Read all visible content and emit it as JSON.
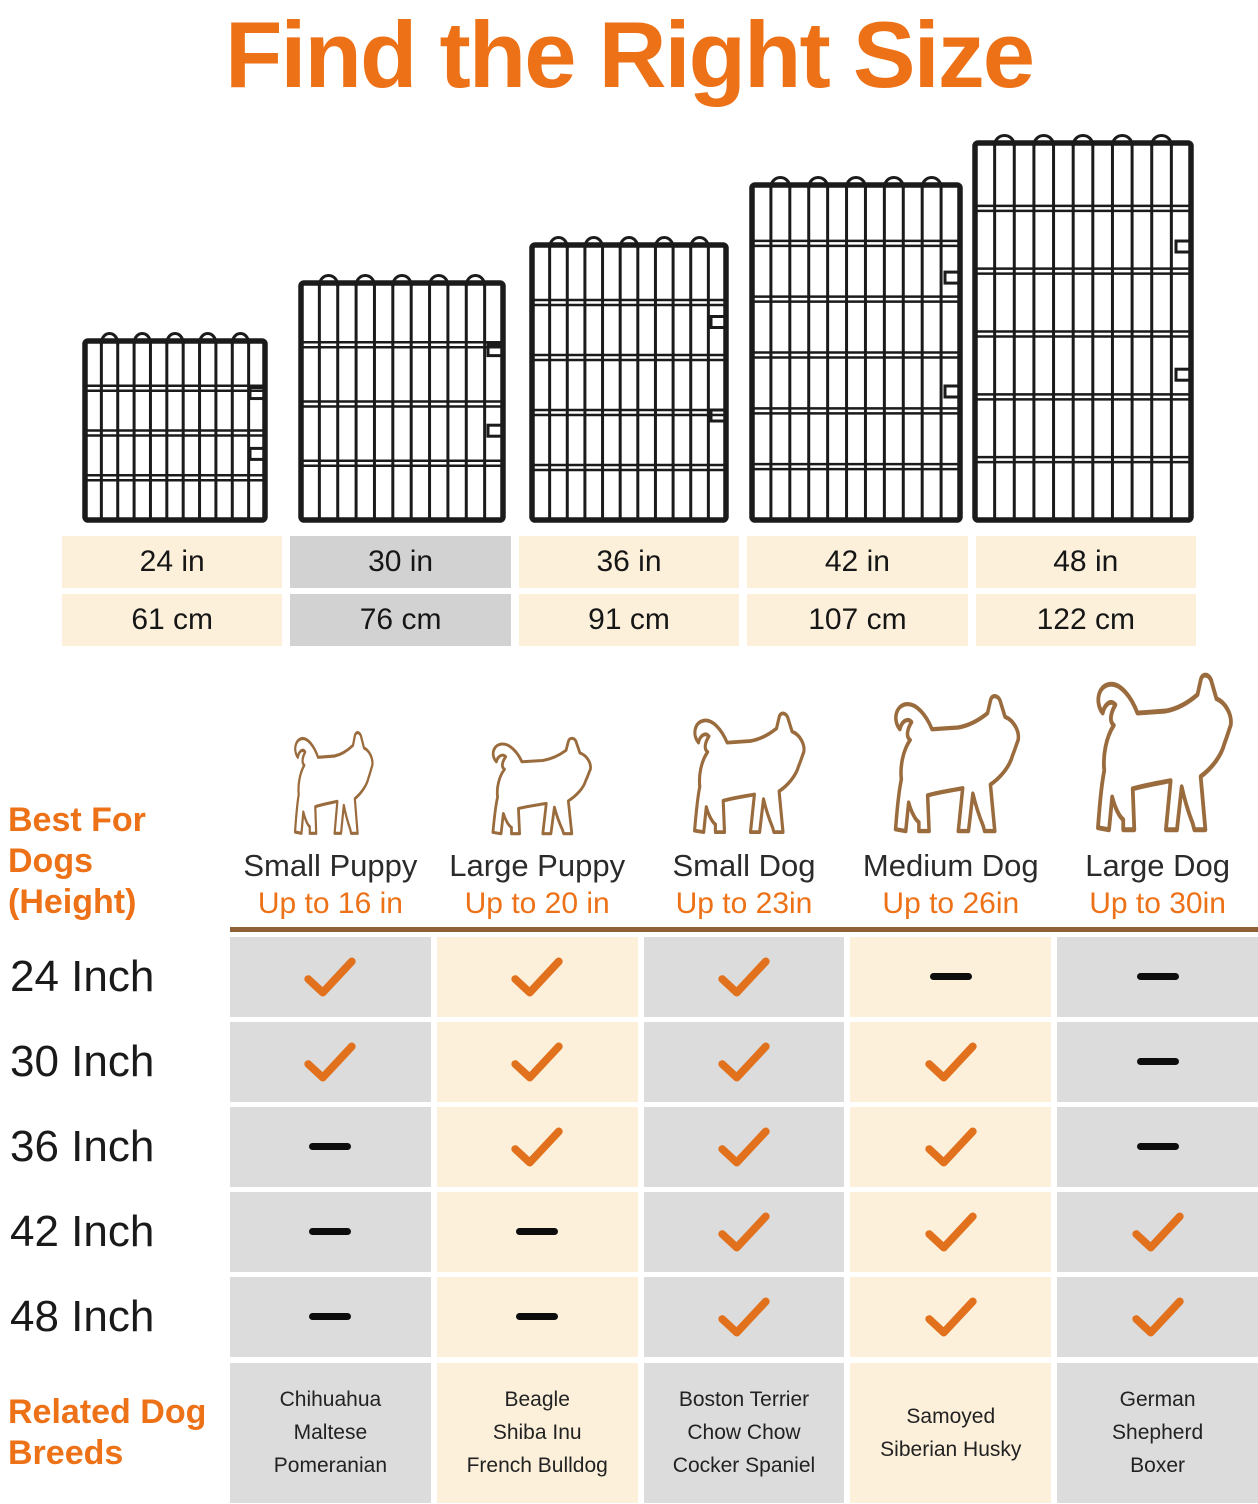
{
  "title": "Find the Right Size",
  "colors": {
    "accent_orange": "#ED7117",
    "check_orange": "#E2711D",
    "cream": "#FCF0DB",
    "matrix_gray": "#DCDCDC",
    "selected_gray": "#D2D2D2",
    "rule_brown": "#8F6137",
    "dog_outline_brown": "#9A6B3C",
    "wire_black": "#1B1B1B"
  },
  "sizes": [
    {
      "inches": "24 in",
      "cm": "61 cm",
      "highlighted": false
    },
    {
      "inches": "30 in",
      "cm": "76 cm",
      "highlighted": true
    },
    {
      "inches": "36 in",
      "cm": "91 cm",
      "highlighted": false
    },
    {
      "inches": "42 in",
      "cm": "107 cm",
      "highlighted": false
    },
    {
      "inches": "48 in",
      "cm": "122 cm",
      "highlighted": false
    }
  ],
  "comparison": {
    "row_header": {
      "line1": "Best For Dogs",
      "line2": "(Height)"
    },
    "columns": [
      {
        "name": "Small Puppy",
        "max_height": "Up to 16 in",
        "icon": "small-puppy-outline-icon"
      },
      {
        "name": "Large Puppy",
        "max_height": "Up to 20 in",
        "icon": "large-puppy-outline-icon"
      },
      {
        "name": "Small Dog",
        "max_height": "Up to 23in",
        "icon": "small-dog-outline-icon"
      },
      {
        "name": "Medium Dog",
        "max_height": "Up to 26in",
        "icon": "medium-dog-outline-icon"
      },
      {
        "name": "Large Dog",
        "max_height": "Up to 30in",
        "icon": "large-dog-outline-icon"
      }
    ],
    "rows": [
      {
        "label": "24 Inch",
        "cells": [
          "check",
          "check",
          "check",
          "dash",
          "dash"
        ]
      },
      {
        "label": "30 Inch",
        "cells": [
          "check",
          "check",
          "check",
          "check",
          "dash"
        ]
      },
      {
        "label": "36 Inch",
        "cells": [
          "dash",
          "check",
          "check",
          "check",
          "dash"
        ]
      },
      {
        "label": "42 Inch",
        "cells": [
          "dash",
          "dash",
          "check",
          "check",
          "check"
        ]
      },
      {
        "label": "48 Inch",
        "cells": [
          "dash",
          "dash",
          "check",
          "check",
          "check"
        ]
      }
    ],
    "breeds_header": {
      "line1": "Related Dog",
      "line2": "Breeds"
    },
    "related_breeds": [
      [
        "Chihuahua",
        "Maltese",
        "Pomeranian"
      ],
      [
        "Beagle",
        "Shiba Inu",
        "French Bulldog"
      ],
      [
        "Boston Terrier",
        "Chow Chow",
        "Cocker Spaniel"
      ],
      [
        "Samoyed",
        "Siberian Husky"
      ],
      [
        "German",
        "Shepherd",
        "Boxer"
      ]
    ]
  },
  "chart_data": {
    "type": "table",
    "title": "Find the Right Size",
    "columns": [
      "Small Puppy (Up to 16 in)",
      "Large Puppy (Up to 20 in)",
      "Small Dog (Up to 23in)",
      "Medium Dog (Up to 26in)",
      "Large Dog (Up to 30in)"
    ],
    "rows": [
      "24 Inch",
      "30 Inch",
      "36 Inch",
      "42 Inch",
      "48 Inch"
    ],
    "values": [
      [
        1,
        1,
        1,
        0,
        0
      ],
      [
        1,
        1,
        1,
        1,
        0
      ],
      [
        0,
        1,
        1,
        1,
        0
      ],
      [
        0,
        0,
        1,
        1,
        1
      ],
      [
        0,
        0,
        1,
        1,
        1
      ]
    ],
    "panel_sizes_in": [
      "24 in",
      "30 in",
      "36 in",
      "42 in",
      "48 in"
    ],
    "panel_sizes_cm": [
      "61 cm",
      "76 cm",
      "91 cm",
      "107 cm",
      "122 cm"
    ],
    "related_breeds": [
      "Chihuahua, Maltese, Pomeranian",
      "Beagle, Shiba Inu, French Bulldog",
      "Boston Terrier, Chow Chow, Cocker Spaniel",
      "Samoyed, Siberian Husky",
      "German Shepherd, Boxer"
    ]
  }
}
